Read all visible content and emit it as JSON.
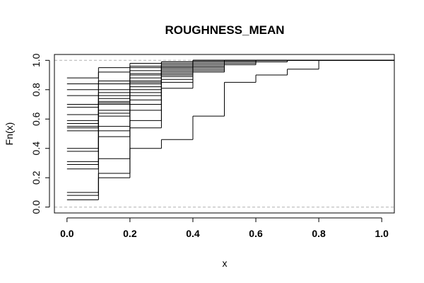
{
  "chart_data": {
    "type": "line",
    "subtype": "empirical-cdf-step",
    "title": "ROUGHNESS_MEAN",
    "xlabel": "x",
    "ylabel": "Fn(x)",
    "xlim": [
      -0.04,
      1.04
    ],
    "ylim": [
      -0.04,
      1.04
    ],
    "x_ticks": [
      "0.0",
      "0.2",
      "0.4",
      "0.6",
      "0.8",
      "1.0"
    ],
    "y_ticks": [
      "0.0",
      "0.2",
      "0.4",
      "0.6",
      "0.8",
      "1.0"
    ],
    "reference_lines_y": [
      0,
      1
    ],
    "grid": false,
    "line_color": "#000000",
    "reference_color": "#b0b0b0",
    "series": [
      {
        "points": [
          [
            0.0,
            0.05
          ],
          [
            0.1,
            0.2
          ],
          [
            0.2,
            0.4
          ],
          [
            0.3,
            0.46
          ],
          [
            0.4,
            0.62
          ],
          [
            0.5,
            0.85
          ],
          [
            0.6,
            0.9
          ],
          [
            0.7,
            0.94
          ],
          [
            0.8,
            1.0
          ]
        ]
      },
      {
        "points": [
          [
            0.0,
            0.08
          ],
          [
            0.1,
            0.23
          ],
          [
            0.2,
            0.54
          ],
          [
            0.3,
            0.81
          ],
          [
            0.4,
            0.92
          ],
          [
            0.5,
            0.97
          ],
          [
            0.6,
            0.99
          ],
          [
            0.7,
            1.0
          ]
        ]
      },
      {
        "points": [
          [
            0.0,
            0.1
          ],
          [
            0.1,
            0.33
          ],
          [
            0.2,
            0.59
          ],
          [
            0.3,
            0.85
          ],
          [
            0.4,
            0.93
          ],
          [
            0.5,
            0.98
          ],
          [
            0.6,
            0.99
          ],
          [
            0.7,
            1.0
          ]
        ]
      },
      {
        "points": [
          [
            0.0,
            0.26
          ],
          [
            0.1,
            0.48
          ],
          [
            0.2,
            0.66
          ],
          [
            0.3,
            0.87
          ],
          [
            0.4,
            0.94
          ],
          [
            0.5,
            0.98
          ],
          [
            0.6,
            1.0
          ]
        ]
      },
      {
        "points": [
          [
            0.0,
            0.29
          ],
          [
            0.1,
            0.52
          ],
          [
            0.2,
            0.7
          ],
          [
            0.3,
            0.89
          ],
          [
            0.4,
            0.95
          ],
          [
            0.5,
            0.98
          ],
          [
            0.6,
            1.0
          ]
        ]
      },
      {
        "points": [
          [
            0.0,
            0.31
          ],
          [
            0.1,
            0.55
          ],
          [
            0.2,
            0.73
          ],
          [
            0.3,
            0.9
          ],
          [
            0.4,
            0.96
          ],
          [
            0.5,
            0.99
          ],
          [
            0.6,
            1.0
          ]
        ]
      },
      {
        "points": [
          [
            0.0,
            0.38
          ],
          [
            0.1,
            0.62
          ],
          [
            0.2,
            0.76
          ],
          [
            0.3,
            0.91
          ],
          [
            0.4,
            0.96
          ],
          [
            0.5,
            0.99
          ],
          [
            0.6,
            1.0
          ]
        ]
      },
      {
        "points": [
          [
            0.0,
            0.4
          ],
          [
            0.1,
            0.64
          ],
          [
            0.2,
            0.78
          ],
          [
            0.3,
            0.92
          ],
          [
            0.4,
            0.97
          ],
          [
            0.5,
            0.99
          ],
          [
            0.6,
            1.0
          ]
        ]
      },
      {
        "points": [
          [
            0.0,
            0.52
          ],
          [
            0.1,
            0.66
          ],
          [
            0.2,
            0.8
          ],
          [
            0.3,
            0.93
          ],
          [
            0.4,
            0.97
          ],
          [
            0.5,
            0.99
          ],
          [
            0.6,
            1.0
          ]
        ]
      },
      {
        "points": [
          [
            0.0,
            0.54
          ],
          [
            0.1,
            0.7
          ],
          [
            0.2,
            0.82
          ],
          [
            0.3,
            0.94
          ],
          [
            0.4,
            0.98
          ],
          [
            0.5,
            0.99
          ],
          [
            0.6,
            1.0
          ]
        ]
      },
      {
        "points": [
          [
            0.0,
            0.55
          ],
          [
            0.1,
            0.71
          ],
          [
            0.2,
            0.84
          ],
          [
            0.3,
            0.95
          ],
          [
            0.4,
            0.98
          ],
          [
            0.5,
            1.0
          ]
        ]
      },
      {
        "points": [
          [
            0.0,
            0.57
          ],
          [
            0.1,
            0.72
          ],
          [
            0.2,
            0.85
          ],
          [
            0.3,
            0.95
          ],
          [
            0.4,
            0.98
          ],
          [
            0.5,
            1.0
          ]
        ]
      },
      {
        "points": [
          [
            0.0,
            0.59
          ],
          [
            0.1,
            0.74
          ],
          [
            0.2,
            0.86
          ],
          [
            0.3,
            0.96
          ],
          [
            0.4,
            0.99
          ],
          [
            0.5,
            1.0
          ]
        ]
      },
      {
        "points": [
          [
            0.0,
            0.63
          ],
          [
            0.1,
            0.76
          ],
          [
            0.2,
            0.88
          ],
          [
            0.3,
            0.96
          ],
          [
            0.4,
            0.99
          ],
          [
            0.5,
            1.0
          ]
        ]
      },
      {
        "points": [
          [
            0.0,
            0.68
          ],
          [
            0.1,
            0.78
          ],
          [
            0.2,
            0.9
          ],
          [
            0.3,
            0.97
          ],
          [
            0.4,
            0.99
          ],
          [
            0.5,
            1.0
          ]
        ]
      },
      {
        "points": [
          [
            0.0,
            0.7
          ],
          [
            0.1,
            0.8
          ],
          [
            0.2,
            0.91
          ],
          [
            0.3,
            0.97
          ],
          [
            0.4,
            0.99
          ],
          [
            0.5,
            1.0
          ]
        ]
      },
      {
        "points": [
          [
            0.0,
            0.76
          ],
          [
            0.1,
            0.84
          ],
          [
            0.2,
            0.93
          ],
          [
            0.3,
            0.98
          ],
          [
            0.4,
            1.0
          ]
        ]
      },
      {
        "points": [
          [
            0.0,
            0.8
          ],
          [
            0.1,
            0.86
          ],
          [
            0.2,
            0.95
          ],
          [
            0.3,
            0.98
          ],
          [
            0.4,
            1.0
          ]
        ]
      },
      {
        "points": [
          [
            0.0,
            0.84
          ],
          [
            0.1,
            0.92
          ],
          [
            0.2,
            0.96
          ],
          [
            0.3,
            0.99
          ],
          [
            0.4,
            1.0
          ]
        ]
      },
      {
        "points": [
          [
            0.0,
            0.88
          ],
          [
            0.1,
            0.95
          ],
          [
            0.2,
            0.98
          ],
          [
            0.3,
            0.99
          ],
          [
            0.4,
            1.0
          ]
        ]
      }
    ]
  }
}
